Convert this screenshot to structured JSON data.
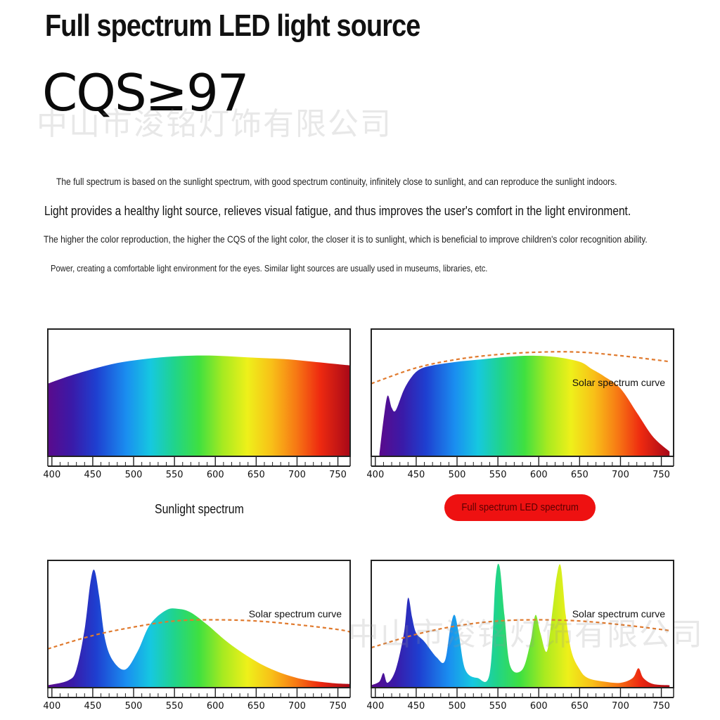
{
  "header": {
    "title": "Full spectrum LED light source",
    "cqs": "CQS≥97",
    "watermark": "中山市浚铭灯饰有限公司"
  },
  "description": {
    "line1": "The full spectrum is based on the sunlight spectrum, with good spectrum continuity, infinitely close to sunlight, and can reproduce the sunlight indoors.",
    "line2": "Light provides a healthy light source, relieves visual fatigue, and thus improves the user's comfort in the light environment.",
    "line3": "The higher the color reproduction, the higher the CQS of the light color, the closer it is to sunlight, which is beneficial to improve children's color recognition ability.",
    "line4": "Power, creating a comfortable light environment for the eyes. Similar light sources are usually used in museums, libraries, etc."
  },
  "captions": {
    "sunlight": "Sunlight spectrum",
    "led": "Full spectrum LED spectrum"
  },
  "colors": {
    "solar_curve": "#e07a2e",
    "led_badge": "#ee1111",
    "frame": "#222222"
  },
  "chart_data": [
    {
      "type": "area",
      "caption": "Sunlight spectrum",
      "x_ticks": [
        400,
        450,
        500,
        550,
        600,
        650,
        700,
        750
      ],
      "xlim": [
        395,
        765
      ],
      "ylim": [
        0,
        1.05
      ],
      "series": [
        {
          "x": [
            395,
            420,
            450,
            480,
            510,
            540,
            570,
            600,
            630,
            660,
            690,
            720,
            750,
            765
          ],
          "y": [
            0.6,
            0.66,
            0.72,
            0.77,
            0.8,
            0.82,
            0.83,
            0.83,
            0.82,
            0.81,
            0.8,
            0.78,
            0.76,
            0.75
          ]
        }
      ]
    },
    {
      "type": "area",
      "caption": "Full spectrum LED spectrum",
      "solar_label": "Solar spectrum curve",
      "x_ticks": [
        400,
        450,
        500,
        550,
        600,
        650,
        700,
        750
      ],
      "xlim": [
        395,
        765
      ],
      "ylim": [
        0,
        1.05
      ],
      "series": [
        {
          "x": [
            405,
            410,
            415,
            420,
            425,
            435,
            445,
            455,
            470,
            500,
            530,
            560,
            590,
            620,
            650,
            665,
            680,
            700,
            720,
            740,
            760
          ],
          "y": [
            0.02,
            0.3,
            0.5,
            0.4,
            0.38,
            0.55,
            0.66,
            0.72,
            0.75,
            0.78,
            0.8,
            0.82,
            0.83,
            0.82,
            0.78,
            0.72,
            0.66,
            0.56,
            0.36,
            0.16,
            0.04
          ]
        }
      ],
      "solar_curve": {
        "x": [
          395,
          450,
          500,
          550,
          600,
          650,
          700,
          750,
          760
        ],
        "y": [
          0.6,
          0.73,
          0.8,
          0.84,
          0.86,
          0.86,
          0.83,
          0.79,
          0.78
        ]
      }
    },
    {
      "type": "area",
      "solar_label": "Solar spectrum curve",
      "x_ticks": [
        400,
        450,
        500,
        550,
        600,
        650,
        700,
        750
      ],
      "xlim": [
        395,
        765
      ],
      "ylim": [
        0,
        1.05
      ],
      "series": [
        {
          "x": [
            395,
            420,
            430,
            440,
            447,
            452,
            458,
            465,
            475,
            490,
            505,
            520,
            540,
            555,
            570,
            590,
            620,
            660,
            700,
            740,
            765
          ],
          "y": [
            0.02,
            0.06,
            0.15,
            0.48,
            0.86,
            0.97,
            0.75,
            0.4,
            0.22,
            0.15,
            0.3,
            0.52,
            0.64,
            0.65,
            0.62,
            0.52,
            0.35,
            0.18,
            0.08,
            0.04,
            0.03
          ]
        }
      ],
      "solar_curve": {
        "x": [
          395,
          450,
          500,
          550,
          600,
          650,
          700,
          750,
          765
        ],
        "y": [
          0.32,
          0.43,
          0.5,
          0.55,
          0.56,
          0.55,
          0.52,
          0.48,
          0.46
        ]
      }
    },
    {
      "type": "area",
      "solar_label": "Solar spectrum curve",
      "x_ticks": [
        400,
        450,
        500,
        550,
        600,
        650,
        700,
        750
      ],
      "xlim": [
        395,
        765
      ],
      "ylim": [
        0,
        1.05
      ],
      "series": [
        {
          "x": [
            395,
            405,
            410,
            415,
            425,
            435,
            440,
            445,
            450,
            460,
            475,
            485,
            492,
            497,
            502,
            510,
            525,
            540,
            547,
            552,
            558,
            565,
            580,
            590,
            596,
            602,
            610,
            617,
            622,
            627,
            633,
            640,
            650,
            660,
            680,
            700,
            715,
            722,
            728,
            740,
            760
          ],
          "y": [
            0.02,
            0.05,
            0.12,
            0.04,
            0.15,
            0.45,
            0.74,
            0.58,
            0.45,
            0.38,
            0.25,
            0.22,
            0.5,
            0.6,
            0.45,
            0.15,
            0.08,
            0.12,
            0.88,
            1.0,
            0.6,
            0.18,
            0.15,
            0.38,
            0.6,
            0.45,
            0.3,
            0.65,
            0.92,
            1.0,
            0.6,
            0.3,
            0.15,
            0.08,
            0.05,
            0.04,
            0.08,
            0.16,
            0.08,
            0.03,
            0.02
          ]
        }
      ],
      "solar_curve": {
        "x": [
          395,
          450,
          500,
          550,
          600,
          650,
          700,
          750,
          760
        ],
        "y": [
          0.33,
          0.44,
          0.51,
          0.55,
          0.56,
          0.55,
          0.52,
          0.48,
          0.47
        ]
      }
    }
  ]
}
